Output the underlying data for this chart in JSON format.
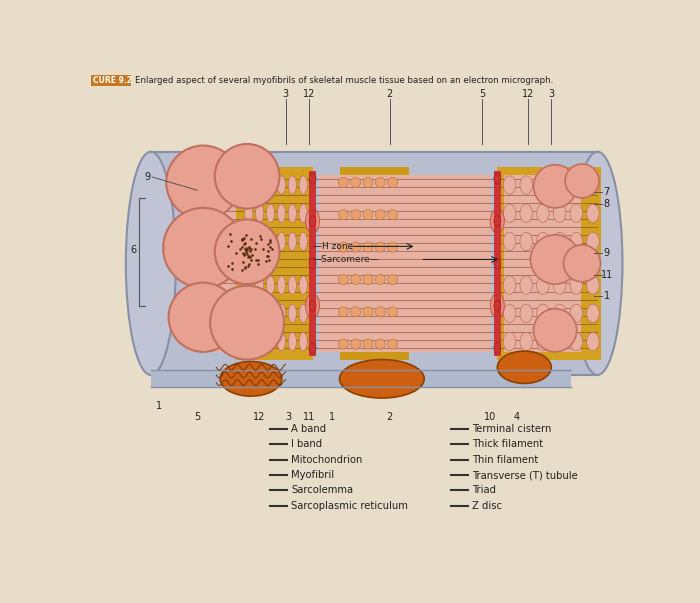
{
  "title_label": "CURE 9.2",
  "title_text": "Enlarged aspect of several myofibrils of skeletal muscle tissue based on an electron micrograph.",
  "bg_color": "#e8dcc8",
  "legend_left": [
    "A band",
    "I band",
    "Mitochondrion",
    "Myofibril",
    "Sarcolemma",
    "Sarcoplasmic reticulum"
  ],
  "legend_right": [
    "Terminal cistern",
    "Thick filament",
    "Thin filament",
    "Transverse (T) tubule",
    "Triad",
    "Z disc"
  ],
  "colors": {
    "bg_main": "#e8ddc8",
    "sarcolemma": "#b8bdd0",
    "sarcolemma_edge": "#8890a8",
    "yellow_aband": "#d4a020",
    "pink_iband": "#e8b0a0",
    "pink_myofibril": "#e8a090",
    "red_zdisc": "#cc3333",
    "orange_mito": "#cc6010",
    "dark_brown": "#5a3010",
    "title_box": "#c87820"
  }
}
